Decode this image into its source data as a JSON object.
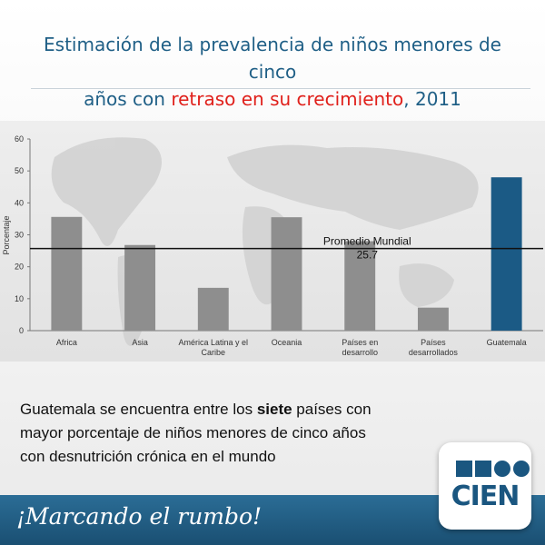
{
  "title": {
    "line1": "Estimación de la prevalencia de niños menores de cinco",
    "line2_pre": "años con ",
    "line2_highlight": "retraso en su crecimiento",
    "line2_post": ", 2011"
  },
  "chart_data": {
    "type": "bar",
    "categories": [
      "Africa",
      "Asia",
      "América Latina y el Caribe",
      "Oceania",
      "Países en desarrollo",
      "Países desarrollados",
      "Guatemala"
    ],
    "category_lines": [
      [
        "Africa"
      ],
      [
        "Asia"
      ],
      [
        "América Latina y el",
        "Caribe"
      ],
      [
        "Oceania"
      ],
      [
        "Países en",
        "desarrollo"
      ],
      [
        "Países",
        "desarrollados"
      ],
      [
        "Guatemala"
      ]
    ],
    "values": [
      35.6,
      26.8,
      13.4,
      35.5,
      28.0,
      7.2,
      48.0
    ],
    "ylabel": "Porcentaje",
    "ylim": [
      0,
      60
    ],
    "yticks": [
      0,
      10,
      20,
      30,
      40,
      50,
      60
    ],
    "reference_line": {
      "value": 25.7,
      "label": "Promedio Mundial",
      "value_label": "25.7"
    },
    "colors": {
      "bar": "#8e8e8e",
      "highlight": "#1b5a85",
      "highlight_index": 6
    },
    "grid": false
  },
  "caption": {
    "pre": "Guatemala se encuentra entre los ",
    "bold": "siete",
    "post": " países con mayor porcentaje de niños menores de cinco años con desnutrición crónica en el mundo"
  },
  "footer": {
    "slogan": "¡Marcando el rumbo!",
    "logo_text": "CIEN"
  }
}
